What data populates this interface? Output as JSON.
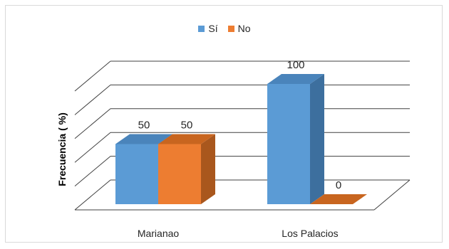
{
  "chart_data": {
    "type": "bar",
    "categories": [
      "Marianao",
      "Los Palacios"
    ],
    "series": [
      {
        "name": "Sí",
        "values": [
          50,
          100
        ],
        "color": "#5b9bd5",
        "side_color": "#3d6f9e",
        "top_color": "#4a84bb"
      },
      {
        "name": "No",
        "values": [
          50,
          0
        ],
        "color": "#ed7d31",
        "side_color": "#a9571d",
        "top_color": "#c8651f"
      }
    ],
    "ylabel": "Frecuencia ( %)",
    "ylim": [
      0,
      100
    ],
    "grid": true,
    "legend_position": "top",
    "data_labels": [
      "50",
      "50",
      "100",
      "0"
    ]
  }
}
